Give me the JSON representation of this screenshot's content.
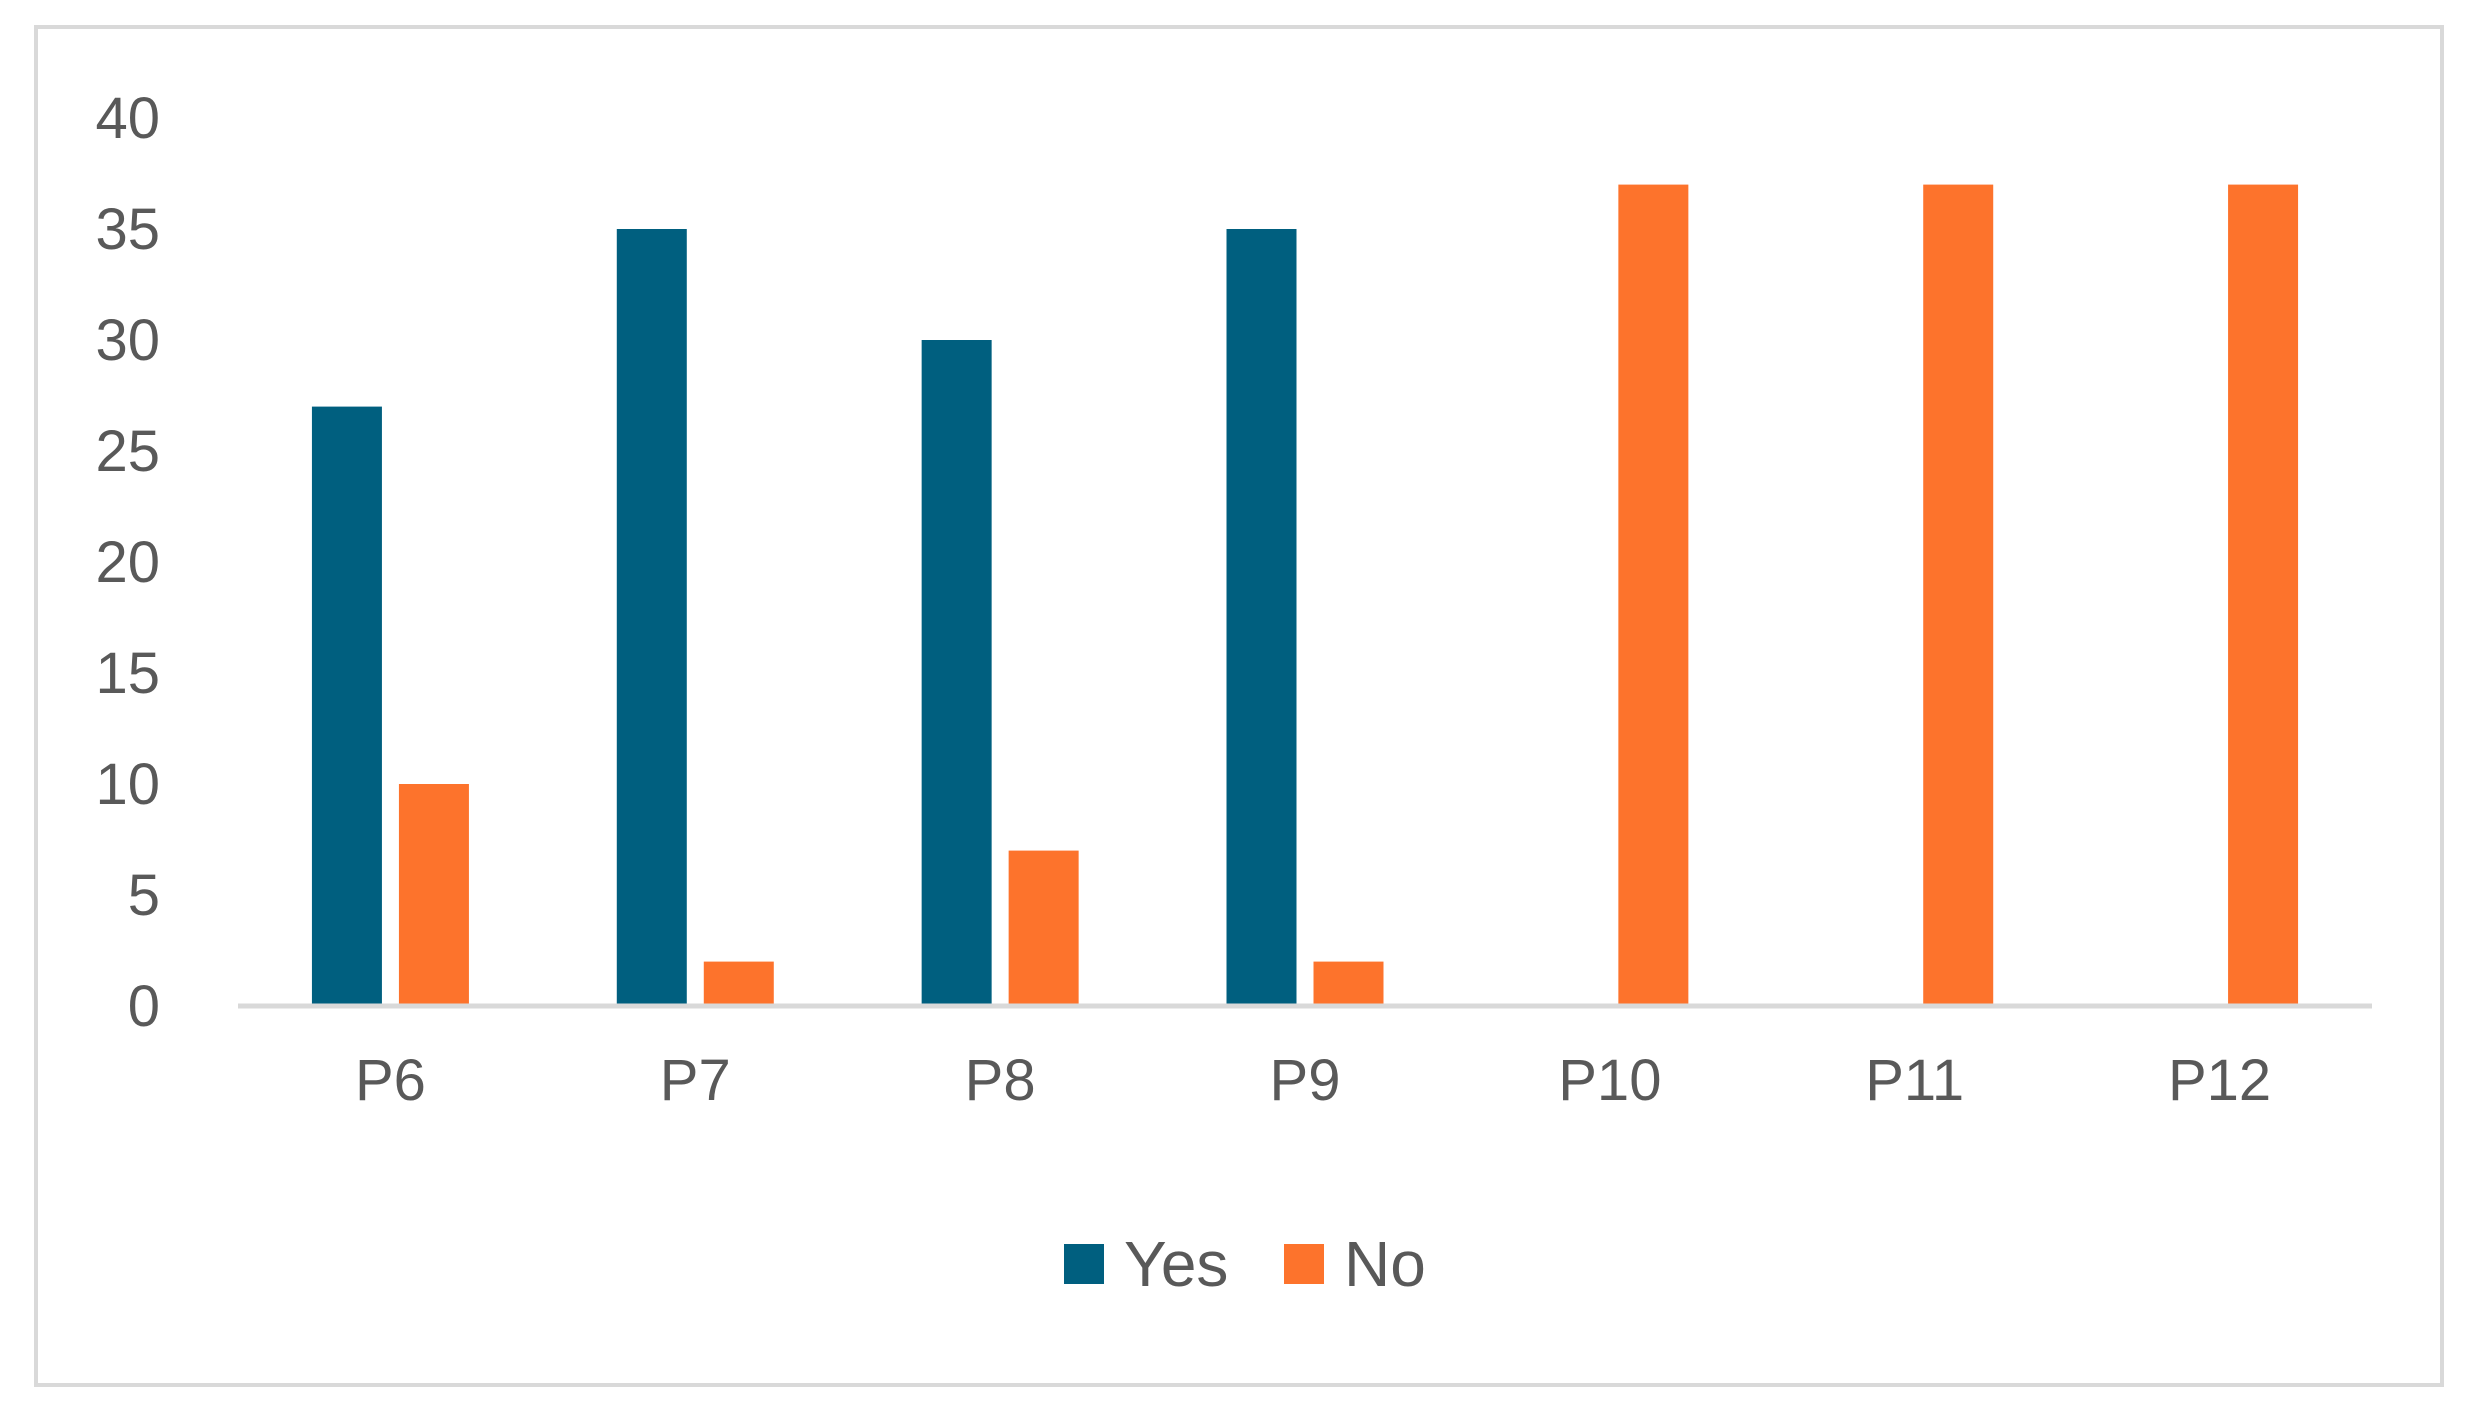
{
  "chart_data": {
    "type": "bar",
    "title": "",
    "xlabel": "",
    "ylabel": "",
    "categories": [
      "P6",
      "P7",
      "P8",
      "P9",
      "P10",
      "P11",
      "P12"
    ],
    "series": [
      {
        "name": "Yes",
        "color": "#005f7f",
        "values": [
          27,
          35,
          30,
          35,
          0,
          0,
          0
        ]
      },
      {
        "name": "No",
        "color": "#fd732c",
        "values": [
          10,
          2,
          7,
          2,
          37,
          37,
          37
        ]
      }
    ],
    "ylim": [
      0,
      40
    ],
    "yticks": [
      0,
      5,
      10,
      15,
      20,
      25,
      30,
      35,
      40
    ],
    "grid": false,
    "legend_position": "bottom"
  }
}
